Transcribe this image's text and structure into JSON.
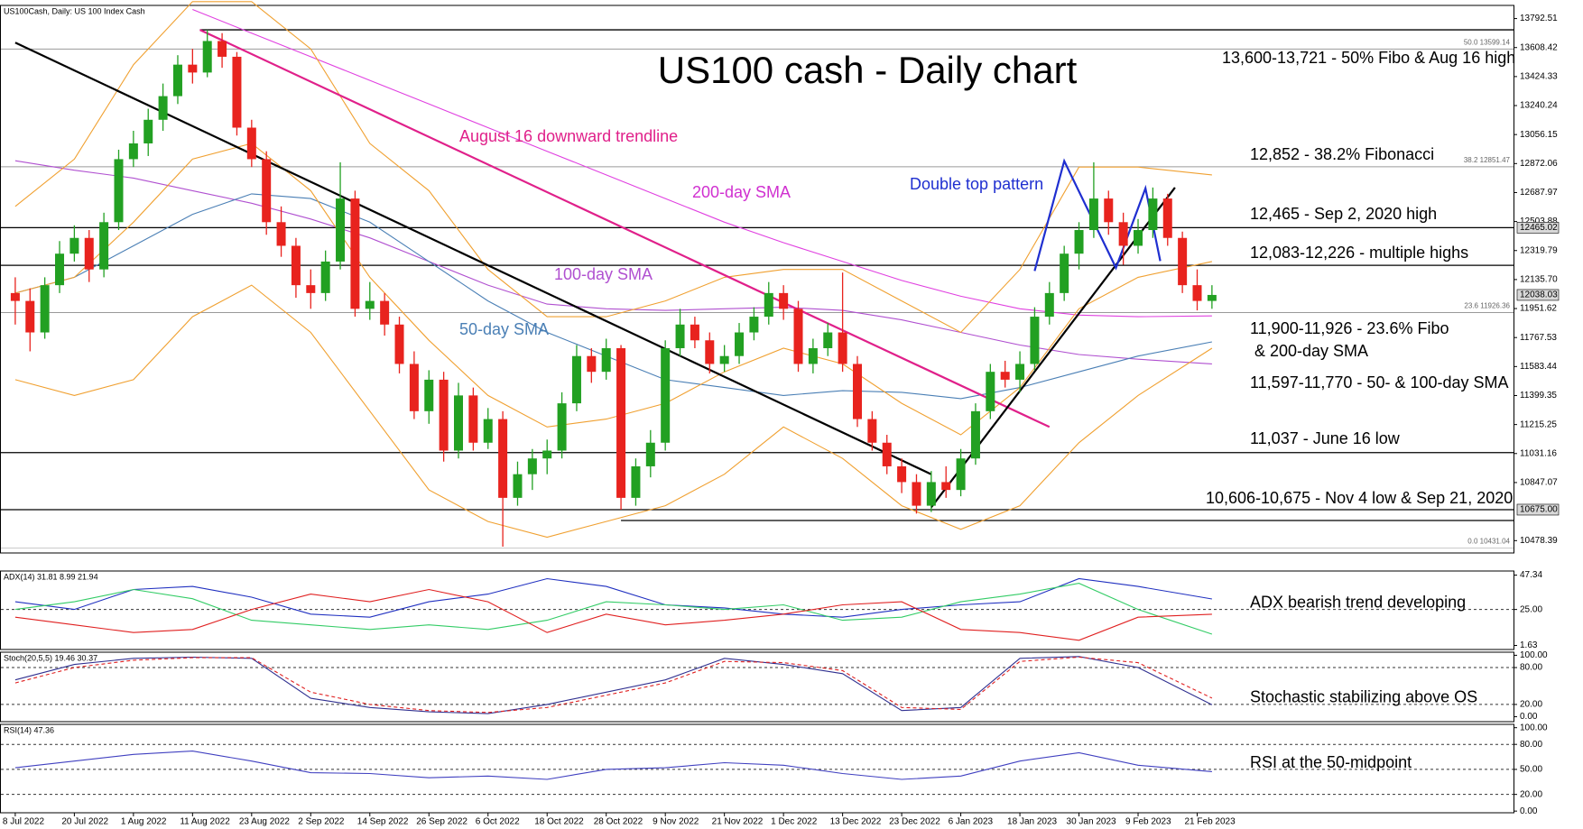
{
  "chart_data": [
    {
      "type": "candlestick",
      "header": "US100Cash, Daily:  US 100 Index Cash",
      "title": "US100 cash - Daily chart",
      "categories": [
        "8 Jul 2022",
        null,
        null,
        null,
        "20 Jul 2022",
        null,
        null,
        null,
        "1 Aug 2022",
        null,
        null,
        null,
        "11 Aug 2022",
        null,
        null,
        null,
        "23 Aug 2022",
        null,
        null,
        null,
        "2 Sep 2022",
        null,
        null,
        null,
        "14 Sep 2022",
        null,
        null,
        null,
        "26 Sep 2022",
        null,
        null,
        null,
        "6 Oct 2022",
        null,
        null,
        null,
        "18 Oct 2022",
        null,
        null,
        null,
        "28 Oct 2022",
        null,
        null,
        null,
        "9 Nov 2022",
        null,
        null,
        null,
        "21 Nov 2022",
        null,
        null,
        null,
        "1 Dec 2022",
        null,
        null,
        null,
        "13 Dec 2022",
        null,
        null,
        null,
        "23 Dec 2022",
        null,
        null,
        null,
        "6 Jan 2023",
        null,
        null,
        null,
        "18 Jan 2023",
        null,
        null,
        null,
        "30 Jan 2023",
        null,
        null,
        null,
        "9 Feb 2023",
        null,
        null,
        null,
        "21 Feb 2023",
        null
      ],
      "open": [
        12050,
        12000,
        11800,
        12100,
        12300,
        12400,
        12200,
        12500,
        12900,
        13000,
        13150,
        13300,
        13500,
        13450,
        13650,
        13550,
        13100,
        12900,
        12500,
        12350,
        12100,
        12050,
        12250,
        12650,
        11950,
        12000,
        11850,
        11600,
        11300,
        11500,
        11050,
        11400,
        11100,
        11250,
        10750,
        10900,
        11000,
        11050,
        11350,
        11650,
        11550,
        11700,
        10750,
        10950,
        11100,
        11700,
        11850,
        11750,
        11600,
        11650,
        11800,
        11900,
        12050,
        11950,
        11600,
        11700,
        11800,
        11600,
        11250,
        11100,
        10950,
        10850,
        10700,
        10850,
        10800,
        11000,
        11300,
        11550,
        11500,
        11600,
        11900,
        12050,
        12300,
        12450,
        12650,
        12500,
        12350,
        12450,
        12650,
        12400,
        12100,
        12000
      ],
      "high": [
        12150,
        12080,
        12150,
        12380,
        12480,
        12450,
        12560,
        12960,
        13080,
        13220,
        13380,
        13560,
        13600,
        13721,
        13700,
        13580,
        13150,
        12950,
        12600,
        12400,
        12200,
        12320,
        12880,
        12700,
        12120,
        12050,
        11900,
        11680,
        11560,
        11550,
        11480,
        11450,
        11320,
        11300,
        10980,
        11060,
        11120,
        11420,
        11720,
        11700,
        11760,
        11720,
        11000,
        11180,
        11750,
        11950,
        11900,
        11800,
        11720,
        11860,
        11960,
        12120,
        12100,
        12000,
        11760,
        11860,
        12180,
        11650,
        11300,
        11150,
        11000,
        10900,
        10920,
        10950,
        11060,
        11350,
        11600,
        11620,
        11680,
        11960,
        12120,
        12350,
        12500,
        12880,
        12700,
        12560,
        12520,
        12720,
        12680,
        12440,
        12200,
        12100
      ],
      "low": [
        11850,
        11680,
        11760,
        12050,
        12250,
        12120,
        12150,
        12450,
        12850,
        12920,
        13080,
        13250,
        13380,
        13420,
        13480,
        13050,
        12850,
        12420,
        12280,
        12020,
        11950,
        12000,
        12200,
        11900,
        11880,
        11780,
        11540,
        11250,
        11220,
        10980,
        11000,
        11050,
        11060,
        10440,
        10700,
        10800,
        10900,
        11000,
        11300,
        11480,
        11500,
        10675,
        10700,
        10880,
        11050,
        11650,
        11700,
        11540,
        11550,
        11600,
        11750,
        11850,
        11880,
        11550,
        11540,
        11650,
        11550,
        11200,
        11050,
        10900,
        10780,
        10650,
        10660,
        10750,
        10760,
        10960,
        11250,
        11450,
        11420,
        11560,
        11850,
        12000,
        12200,
        12400,
        12420,
        12230,
        12300,
        12400,
        12350,
        12050,
        11940,
        11950
      ],
      "close": [
        12000,
        11800,
        12100,
        12300,
        12400,
        12200,
        12500,
        12900,
        13000,
        13150,
        13300,
        13500,
        13450,
        13650,
        13550,
        13100,
        12900,
        12500,
        12350,
        12100,
        12050,
        12250,
        12650,
        11950,
        12000,
        11850,
        11600,
        11300,
        11500,
        11050,
        11400,
        11100,
        11250,
        10750,
        10900,
        11000,
        11050,
        11350,
        11650,
        11550,
        11700,
        10750,
        10950,
        11100,
        11700,
        11850,
        11750,
        11600,
        11650,
        11800,
        11900,
        12050,
        11950,
        11600,
        11700,
        11800,
        11600,
        11250,
        11100,
        10950,
        10850,
        10700,
        10850,
        10800,
        11000,
        11300,
        11550,
        11500,
        11600,
        11900,
        12050,
        12300,
        12450,
        12650,
        12500,
        12350,
        12450,
        12650,
        12400,
        12100,
        12000,
        12038.03
      ],
      "up_color": "#22a022",
      "down_color": "#e8231e",
      "ylim": [
        10400,
        13876
      ],
      "yticks": [
        13792.51,
        13608.42,
        13424.33,
        13240.24,
        13056.15,
        12872.06,
        12687.97,
        12503.88,
        12319.79,
        {
          "value": 12135.7,
          "label": "12135.70"
        },
        11951.62,
        11767.53,
        11583.44,
        11399.35,
        11215.25,
        11031.16,
        10847.07,
        10478.39
      ],
      "marker_ticks": [
        12465.02,
        12038.03,
        {
          "value": 10675,
          "label": "10675.00"
        }
      ],
      "hlines": [
        {
          "value": 13721,
          "from": 12.5,
          "color": "#000000"
        },
        {
          "value": 13599.14,
          "color": "#9a9a9a"
        },
        {
          "value": 12851.47,
          "color": "#9a9a9a"
        },
        {
          "value": 12465,
          "color": "#000000"
        },
        {
          "value": 12226,
          "color": "#000000"
        },
        {
          "value": 11926.36,
          "color": "#9a9a9a"
        },
        {
          "value": 11037,
          "color": "#000000"
        },
        {
          "value": 10675,
          "color": "#000000"
        },
        {
          "value": 10606,
          "from": 41,
          "color": "#000000"
        },
        {
          "value": 10431.04,
          "color": "#c8c8c8"
        }
      ],
      "fibo": [
        {
          "value": 13599.14,
          "label": "50.0 13599.14"
        },
        {
          "value": 12851.47,
          "label": "38.2 12851.47"
        },
        {
          "value": 11926.36,
          "label": "23.6 11926.36"
        },
        {
          "value": 10431.04,
          "label": "0.0 10431.04"
        }
      ],
      "line_x": [
        0,
        4,
        8,
        12,
        16,
        20,
        24,
        28,
        32,
        36,
        40,
        44,
        48,
        52,
        56,
        60,
        64,
        68,
        72,
        76,
        81
      ],
      "overlays": [
        {
          "color": "#e040e0",
          "values": [
            null,
            null,
            null,
            13850,
            13700,
            13550,
            13400,
            13250,
            13100,
            12950,
            12800,
            12650,
            12500,
            12370,
            12250,
            12130,
            12030,
            11950,
            11910,
            11900,
            11905
          ]
        },
        {
          "color": "#b050d0",
          "values": [
            12890,
            12830,
            12780,
            12700,
            12620,
            12520,
            12400,
            12250,
            12100,
            11980,
            11950,
            11940,
            11950,
            11960,
            11940,
            11880,
            11800,
            11720,
            11660,
            11630,
            11600
          ]
        },
        {
          "color": "#4a7fb5",
          "values": [
            12050,
            12150,
            12350,
            12550,
            12680,
            12650,
            12500,
            12250,
            12000,
            11800,
            11650,
            11500,
            11450,
            11400,
            11430,
            11420,
            11380,
            11450,
            11550,
            11650,
            11740
          ]
        },
        {
          "color": "#f0a030",
          "values": [
            12600,
            12900,
            13500,
            13900,
            13900,
            13600,
            13000,
            12700,
            12200,
            11900,
            11900,
            12000,
            12150,
            12200,
            12200,
            12000,
            11800,
            12200,
            12850,
            12850,
            12800
          ]
        },
        {
          "color": "#f0a030",
          "values": [
            12050,
            12150,
            12500,
            12900,
            13000,
            12700,
            12150,
            11750,
            11400,
            11200,
            11250,
            11350,
            11550,
            11700,
            11600,
            11350,
            11150,
            11450,
            11950,
            12150,
            12250
          ]
        },
        {
          "color": "#f0a030",
          "values": [
            11500,
            11400,
            11500,
            11900,
            12100,
            11800,
            11300,
            10800,
            10600,
            10500,
            10600,
            10700,
            10900,
            11200,
            11000,
            10700,
            10550,
            10700,
            11100,
            11400,
            11700
          ]
        }
      ],
      "trendlines": [
        {
          "color": "#000000",
          "x": [
            0,
            62
          ],
          "values": [
            13640,
            10900
          ]
        },
        {
          "color": "#e0208a",
          "x": [
            12.5,
            70
          ],
          "values": [
            13721,
            11200
          ]
        },
        {
          "color": "#000000",
          "x": [
            62,
            78.5
          ],
          "values": [
            10690,
            12720
          ]
        },
        {
          "color": "#1f2fd0",
          "x": [
            69,
            71,
            74.5,
            76.5,
            77.5
          ],
          "values": [
            12190,
            12888,
            12210,
            12715,
            12253
          ]
        }
      ],
      "labels": [
        {
          "text": "August 16 downward trendline",
          "color": "#e0208a"
        },
        {
          "text": "200-day SMA",
          "color": "#d030d0"
        },
        {
          "text": "Double top pattern",
          "color": "#1f2fd0"
        },
        {
          "text": "100-day SMA",
          "color": "#b050d0"
        },
        {
          "text": "50-day SMA",
          "color": "#4a7fb5"
        }
      ],
      "notes": [
        "13,600-13,721 - 50% Fibo & Aug 16 high",
        "12,852 - 38.2% Fibonacci",
        "12,465 - Sep 2, 2020 high",
        "12,083-12,226 - multiple highs",
        "11,900-11,926 - 23.6% Fibo",
        "& 200-day SMA",
        "11,597-11,770 - 50- & 100-day SMA",
        "11,037 - June 16 low",
        "10,606-10,675 - Nov 4 low & Sep 21, 2020"
      ]
    },
    {
      "type": "line",
      "header": "ADX(14) 31.81 8.99 21.94",
      "note": "ADX bearish trend developing",
      "ylim": [
        -1,
        50
      ],
      "yticks": [
        47.34,
        {
          "value": 25,
          "label": "25.00"
        },
        1.63
      ],
      "levels": [
        25
      ],
      "line_x": [
        0,
        4,
        8,
        12,
        16,
        20,
        24,
        28,
        32,
        36,
        40,
        44,
        48,
        52,
        56,
        60,
        64,
        68,
        72,
        76,
        81
      ],
      "series": [
        {
          "color": "#2030c0",
          "values": [
            30,
            25,
            38,
            40,
            33,
            22,
            20,
            30,
            35,
            45,
            40,
            28,
            26,
            22,
            20,
            25,
            28,
            30,
            45,
            40,
            31.81
          ]
        },
        {
          "color": "#33cc66",
          "values": [
            25,
            30,
            38,
            32,
            18,
            15,
            12,
            15,
            12,
            18,
            30,
            28,
            25,
            28,
            18,
            20,
            30,
            35,
            42,
            25,
            8.99
          ]
        },
        {
          "color": "#e02020",
          "values": [
            20,
            15,
            10,
            12,
            25,
            35,
            30,
            38,
            30,
            10,
            22,
            15,
            18,
            22,
            28,
            30,
            12,
            10,
            5,
            20,
            21.94
          ]
        }
      ]
    },
    {
      "type": "line",
      "header": "Stoch(20,5,5) 19.46 30.37",
      "note": "Stochastic stabilizing above OS",
      "ylim": [
        -8,
        105
      ],
      "yticks": [
        {
          "value": 100,
          "label": "100.00"
        },
        {
          "value": 80,
          "label": "80.00"
        },
        {
          "value": 20,
          "label": "20.00"
        },
        {
          "value": 0,
          "label": "0.00"
        }
      ],
      "levels": [
        80,
        20
      ],
      "line_x": [
        0,
        4,
        8,
        12,
        16,
        20,
        24,
        28,
        32,
        36,
        40,
        44,
        48,
        52,
        56,
        60,
        64,
        68,
        72,
        76,
        81
      ],
      "series": [
        {
          "color": "#303090",
          "values": [
            60,
            85,
            95,
            97,
            95,
            30,
            15,
            8,
            5,
            20,
            40,
            60,
            95,
            85,
            70,
            10,
            15,
            95,
            98,
            80,
            19.46
          ]
        },
        {
          "color": "#e02020",
          "dashed": true,
          "values": [
            55,
            80,
            92,
            96,
            96,
            40,
            20,
            10,
            7,
            15,
            35,
            55,
            90,
            88,
            75,
            15,
            12,
            90,
            97,
            88,
            30.37
          ]
        }
      ]
    },
    {
      "type": "line",
      "header": "RSI(14) 47.36",
      "note": "RSI at the 50-midpoint",
      "ylim": [
        -2,
        104
      ],
      "yticks": [
        {
          "value": 100,
          "label": "100.00"
        },
        {
          "value": 80,
          "label": "80.00"
        },
        {
          "value": 50,
          "label": "50.00"
        },
        {
          "value": 20,
          "label": "20.00"
        },
        {
          "value": 0,
          "label": "0.00"
        }
      ],
      "levels": [
        80,
        50,
        20
      ],
      "line_x": [
        0,
        4,
        8,
        12,
        16,
        20,
        24,
        28,
        32,
        36,
        40,
        44,
        48,
        52,
        56,
        60,
        64,
        68,
        72,
        76,
        81
      ],
      "series": [
        {
          "color": "#4040c0",
          "values": [
            52,
            60,
            68,
            72,
            60,
            46,
            45,
            40,
            42,
            38,
            50,
            52,
            58,
            55,
            45,
            38,
            42,
            60,
            70,
            55,
            47.36
          ]
        }
      ]
    }
  ]
}
